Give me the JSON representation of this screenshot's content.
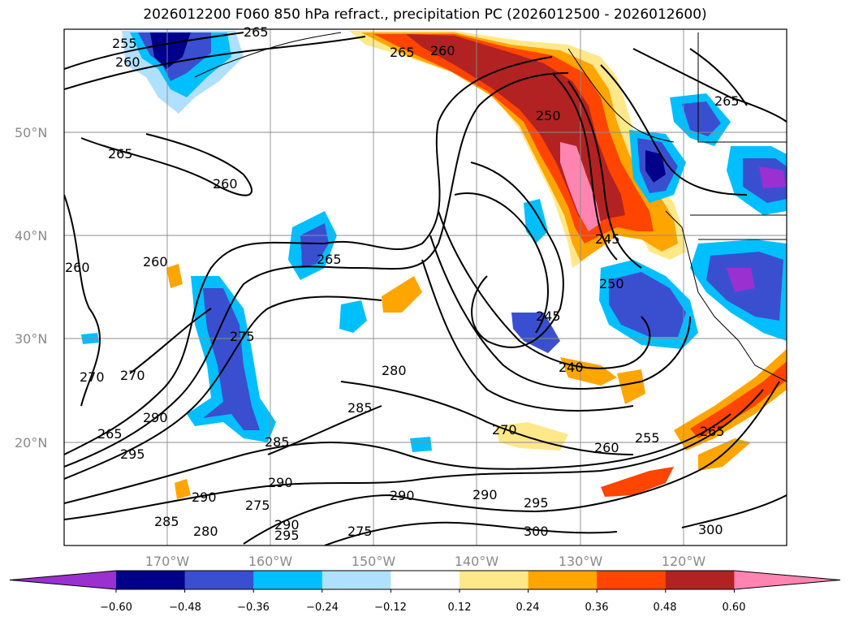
{
  "title": "2026012200 F060 850 hPa refract., precipitation PC (2026012500 - 2026012600)",
  "latitude_labels": [
    "50°N",
    "40°N",
    "30°N",
    "20°N"
  ],
  "longitude_labels": [
    "170°W",
    "160°W",
    "150°W",
    "140°W",
    "130°W",
    "120°W"
  ],
  "colorbar": {
    "ticks": [
      "−0.60",
      "−0.48",
      "−0.36",
      "−0.24",
      "−0.12",
      "0.12",
      "0.24",
      "0.36",
      "0.48",
      "0.60"
    ],
    "colors": [
      "#9b30d0",
      "#00008b",
      "#3a4fd0",
      "#00bfff",
      "#b0e0ff",
      "#ffffff",
      "#ffe88a",
      "#ffa500",
      "#ff4500",
      "#b22222",
      "#ff85b0"
    ],
    "extend": "both"
  },
  "contour_labels": [
    "255",
    "260",
    "265",
    "265",
    "260",
    "265",
    "265",
    "260",
    "260",
    "260",
    "265",
    "250",
    "245",
    "250",
    "245",
    "240",
    "270",
    "275",
    "270",
    "265",
    "290",
    "295",
    "285",
    "280",
    "285",
    "270",
    "260",
    "255",
    "265",
    "285",
    "290",
    "280",
    "275",
    "295",
    "290",
    "275",
    "290",
    "295",
    "300",
    "300",
    "290",
    "290"
  ]
}
